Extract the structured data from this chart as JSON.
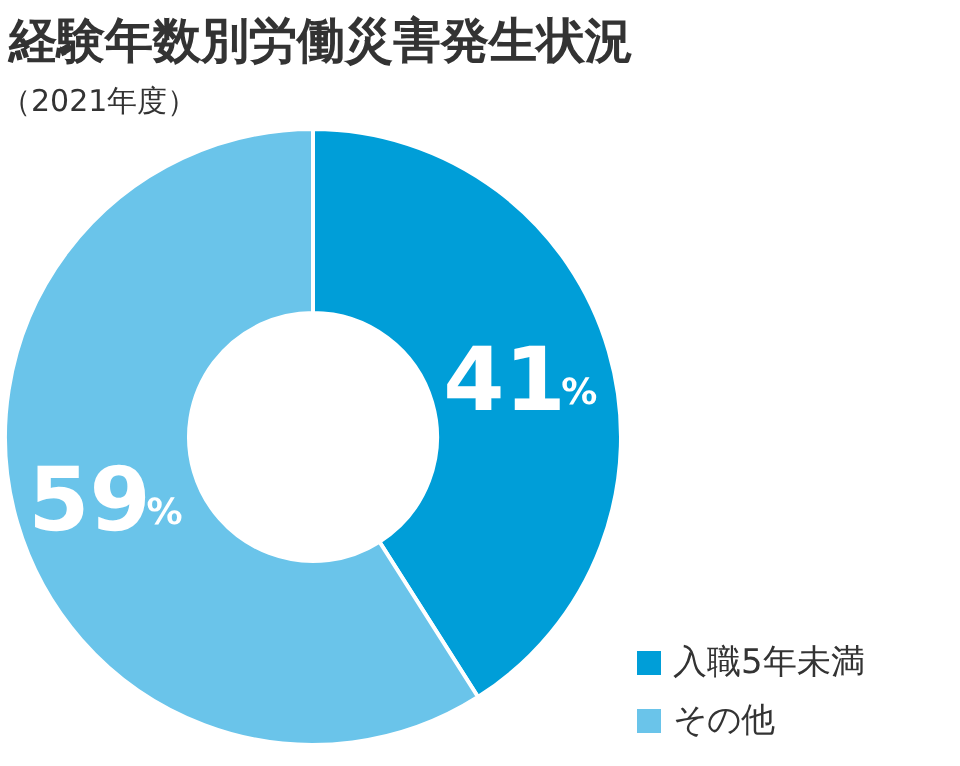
{
  "chart_data": {
    "type": "donut",
    "title": "経験年数別労働災害発生状況",
    "subtitle": "（2021年度）",
    "categories": [
      "入職5年未満",
      "その他"
    ],
    "values": [
      41,
      59
    ],
    "colors": [
      "#009ed8",
      "#6ac4ea"
    ],
    "value_labels": [
      "41%",
      "59%"
    ],
    "legend": "bottom right"
  }
}
